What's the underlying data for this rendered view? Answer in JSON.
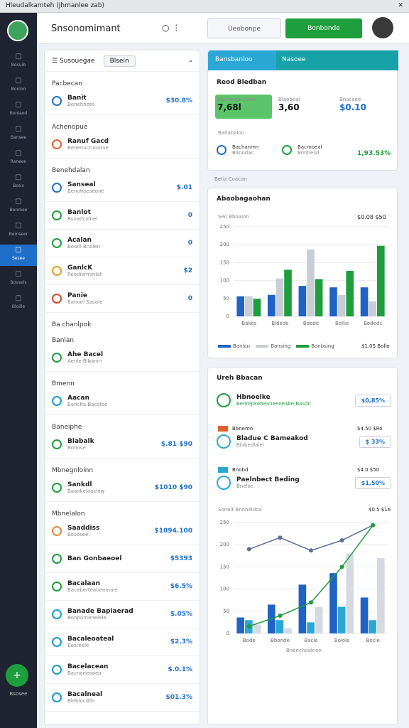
{
  "window_title": "Hleudalkamteh (Jhmanlee zab)",
  "header": {
    "title": "Snsonomimant",
    "search_button": "Ueobonpe",
    "primary_button": "Bonbonde"
  },
  "sidebar": {
    "items": [
      "Bosuib",
      "Bonloo",
      "Bonlaod",
      "Bansee",
      "Raneen",
      "Bosis",
      "Bonmee",
      "Bemseer",
      "Sesee",
      "Bovseis",
      "Bloilie"
    ],
    "active_item": 8,
    "fab_label": "Bsosee"
  },
  "left_panel": {
    "toolbar": "Susouegae",
    "tab": "Blsein",
    "rows": [
      {
        "section": "Pacbecan"
      },
      {
        "title": "Banit",
        "subtitle": "Benehhote",
        "value": "$30.8%",
        "color": "#1f6fc9"
      },
      {
        "section": "Achenopue"
      },
      {
        "title": "Ranuf Gacd",
        "subtitle": "Benenuctuoatue",
        "color": "#e0612c"
      },
      {
        "section": "Benehdalan"
      },
      {
        "title": "Sanseal",
        "subtitle": "Benohoeseone",
        "value": "$.01",
        "color": "#1f6fc9"
      },
      {
        "title": "Banlot",
        "subtitle": "Bsoadcolnel",
        "value": "0",
        "color": "#1e9e3c"
      },
      {
        "title": "Acalan",
        "subtitle": "Beanl Bnolen",
        "value": "0",
        "color": "#1e9e3c"
      },
      {
        "title": "GanlcK",
        "subtitle": "Reodiomonlat",
        "value": "$2",
        "color": "#e0a020"
      },
      {
        "title": "Panie",
        "subtitle": "Banoel Sacoie",
        "value": "0",
        "color": "#d84a2b"
      },
      {
        "section": "Ba chanlpok"
      },
      {
        "section": "Banlan"
      },
      {
        "title": "Ahe Bacel",
        "subtitle": "Aenle Blbanin",
        "color": "#1e9e3c"
      },
      {
        "section": "Bmenn"
      },
      {
        "title": "Aacan",
        "subtitle": "Bancha Bacolbe",
        "color": "#1a9bc0"
      },
      {
        "section": "Baneiphe"
      },
      {
        "title": "Blabalk",
        "subtitle": "Bonose",
        "value": "$.81 $90",
        "color": "#1e9e3c"
      },
      {
        "section": "Mbnegnloinn"
      },
      {
        "title": "Sankdl",
        "subtitle": "Baonkelaaclow",
        "value": "$1010 $90",
        "color": "#1e9e3c"
      },
      {
        "section": "Mbnelalon"
      },
      {
        "title": "Saaddiss",
        "subtitle": "Beseseel",
        "value": "$1094.100",
        "color": "#e08a3c"
      },
      {
        "title": "Ban Gonbaeoel",
        "value": "$5393",
        "color": "#1e9e3c"
      },
      {
        "title": "Bacalaan",
        "subtitle": "Baceberteabeemaie",
        "value": "$6.5%",
        "color": "#1e9e3c"
      },
      {
        "title": "Banade Bapiaerad",
        "subtitle": "Bonpomeneiele",
        "value": "$.05%",
        "color": "#1a9bc0"
      },
      {
        "title": "Bacaleoateal",
        "subtitle": "Bosreele",
        "value": "$2.3%",
        "color": "#1a9bc0"
      },
      {
        "title": "Bacelacean",
        "subtitle": "Bacnaneooeo",
        "value": "$.0.1%",
        "color": "#1a9bc0"
      },
      {
        "title": "Bacalneal",
        "subtitle": "Bleblocdllb",
        "value": "$01.3%",
        "color": "#1a9bc0"
      }
    ]
  },
  "top_card": {
    "tab": "Bansbanloo",
    "tab2": "Nasoee",
    "title": "Reod Bledban",
    "stats": [
      {
        "label": "Bacmoeal Bane",
        "value": "7,68l"
      },
      {
        "label": "Blaobeal",
        "value": "3,60"
      },
      {
        "label": "Bnacaee",
        "value": "$0.10"
      }
    ],
    "row_title": "Bahabalon",
    "row_items": [
      {
        "title": "Bachanmn",
        "subtitle": "Banodac"
      },
      {
        "title": "Bacmoeal",
        "subtitle": "Bonbelal"
      }
    ],
    "row_value": "1,93.53%"
  },
  "section_label": "Betiz Coacan",
  "bar_card": {
    "title": "Abaobagaohan",
    "caption": "Seo Bboalon",
    "caption_value": "$0.08 $50",
    "chart": {
      "type": "bar",
      "categories": [
        "Bakes",
        "Bldede",
        "Bdede",
        "Bellie",
        "Bodedc"
      ],
      "ylim": [
        0,
        250
      ],
      "yticks": [
        0,
        50,
        100,
        150,
        200,
        250
      ],
      "grid": true,
      "series": [
        {
          "name": "Banlan",
          "color": "#1f63c4",
          "values": [
            56,
            60,
            85,
            81,
            81
          ]
        },
        {
          "name": "Bansing",
          "color": "#c9ced6",
          "values": [
            56,
            106,
            187,
            60,
            42
          ]
        },
        {
          "name": "Bonbsing",
          "color": "#1e9e3c",
          "values": [
            49,
            130,
            104,
            127,
            197
          ]
        }
      ]
    },
    "footer_value": "$1.05 Bollo"
  },
  "list_card": {
    "title": "Ureh Bbacan",
    "items": [
      {
        "title": "Hbnoelke",
        "subtitle": "Benrepkebeaneeneabe Basdn",
        "value": "$0,85%"
      },
      {
        "title": "Bladue C Bameakod",
        "subtitle": "Blabedlaiel",
        "value": "$ 33%",
        "tag": "Bbnemn",
        "tag_value": "$4.50 $Ro"
      },
      {
        "title": "Paelnbect Beding",
        "subtitle": "Bneloe",
        "value": "$1,50%",
        "tag": "Bnobd",
        "tag_value": "$4.0 $50"
      }
    ],
    "caption": "Sonelr Bnoneldoa",
    "caption_value": "$0.5 $16",
    "chart": {
      "type": "bar",
      "categories": [
        "Bode",
        "Bbonde",
        "Bacle",
        "Bolole",
        "Bocle"
      ],
      "ylim": [
        0,
        250
      ],
      "yticks": [
        0,
        50,
        100,
        150,
        200,
        250
      ],
      "grid": true,
      "series": [
        {
          "color": "#1f63c4",
          "values": [
            36,
            65,
            110,
            136,
            81
          ]
        },
        {
          "color": "#2ba7d6",
          "values": [
            30,
            30,
            25,
            60,
            30
          ]
        },
        {
          "color": "#d5d9e0",
          "values": [
            20,
            12,
            60,
            180,
            170
          ]
        },
        {
          "type": "line",
          "color": "#5a6e9a",
          "values": [
            190,
            216,
            187,
            210,
            244
          ]
        },
        {
          "type": "line",
          "color": "#1e9e3c",
          "values": [
            16,
            40,
            70,
            150,
            244
          ]
        }
      ]
    },
    "axis_label": "Bnenchoalnon"
  }
}
